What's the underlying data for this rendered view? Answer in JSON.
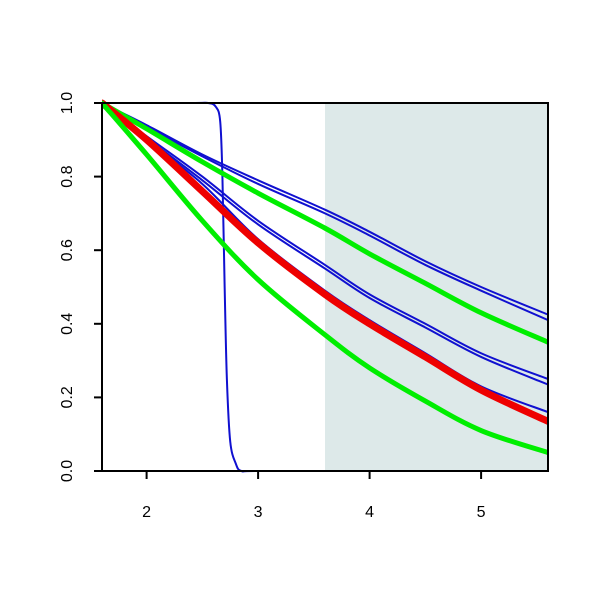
{
  "chart_data": {
    "type": "line",
    "title": "",
    "xlabel": "",
    "ylabel": "",
    "xlim": [
      1.6,
      5.6
    ],
    "ylim": [
      0,
      1
    ],
    "x_ticks": [
      "2",
      "3",
      "4",
      "5"
    ],
    "y_ticks": [
      "0.0",
      "0.2",
      "0.4",
      "0.6",
      "0.8",
      "1.0"
    ],
    "shaded_region": {
      "x_from": 3.6,
      "x_to": 5.6,
      "color": "#dde9e9"
    },
    "colors": {
      "blue": "#1010d0",
      "green": "#00ee00",
      "red": "#ee0000",
      "axis": "#000000"
    },
    "series": [
      {
        "color": "#1010d0",
        "width": 2,
        "x": [
          1.6,
          2.4,
          2.55,
          2.62,
          2.66,
          2.68,
          2.7,
          2.72,
          2.75,
          2.8,
          2.85,
          3.0,
          4.0,
          5.0,
          5.6
        ],
        "y": [
          1.0,
          1.0,
          1.0,
          0.99,
          0.95,
          0.8,
          0.5,
          0.25,
          0.08,
          0.02,
          0.0,
          0.0,
          0.0,
          0.0,
          0.0
        ]
      },
      {
        "color": "#1010d0",
        "width": 2,
        "x": [
          1.6,
          2.0,
          2.5,
          3.0,
          3.6,
          4.0,
          4.5,
          5.0,
          5.6
        ],
        "y": [
          1.0,
          0.94,
          0.86,
          0.79,
          0.71,
          0.65,
          0.57,
          0.5,
          0.425
        ]
      },
      {
        "color": "#1010d0",
        "width": 2,
        "x": [
          1.6,
          2.0,
          2.5,
          3.0,
          3.6,
          4.0,
          4.5,
          5.0,
          5.6
        ],
        "y": [
          1.0,
          0.935,
          0.855,
          0.78,
          0.7,
          0.64,
          0.56,
          0.49,
          0.41
        ]
      },
      {
        "color": "#1010d0",
        "width": 2,
        "x": [
          1.6,
          2.0,
          2.5,
          3.0,
          3.6,
          4.0,
          4.5,
          5.0,
          5.6
        ],
        "y": [
          1.0,
          0.91,
          0.8,
          0.68,
          0.56,
          0.48,
          0.4,
          0.32,
          0.25
        ]
      },
      {
        "color": "#1010d0",
        "width": 2,
        "x": [
          1.6,
          2.0,
          2.5,
          3.0,
          3.6,
          4.0,
          4.5,
          5.0,
          5.6
        ],
        "y": [
          1.0,
          0.905,
          0.79,
          0.67,
          0.55,
          0.47,
          0.39,
          0.31,
          0.235
        ]
      },
      {
        "color": "#1010d0",
        "width": 2,
        "x": [
          1.6,
          2.0,
          2.5,
          3.0,
          3.6,
          4.0,
          4.5,
          5.0,
          5.6
        ],
        "y": [
          1.0,
          0.9,
          0.78,
          0.63,
          0.49,
          0.41,
          0.32,
          0.23,
          0.16
        ]
      },
      {
        "color": "#00ee00",
        "width": 5,
        "x": [
          1.6,
          2.0,
          2.5,
          3.0,
          3.6,
          4.0,
          4.5,
          5.0,
          5.6
        ],
        "y": [
          1.0,
          0.93,
          0.84,
          0.755,
          0.66,
          0.59,
          0.51,
          0.43,
          0.35
        ]
      },
      {
        "color": "#ee0000",
        "width": 7,
        "x": [
          1.6,
          2.0,
          2.5,
          3.0,
          3.6,
          4.0,
          4.5,
          5.0,
          5.6
        ],
        "y": [
          1.0,
          0.9,
          0.76,
          0.62,
          0.48,
          0.4,
          0.31,
          0.22,
          0.135
        ]
      },
      {
        "color": "#00ee00",
        "width": 5,
        "x": [
          1.6,
          2.0,
          2.5,
          3.0,
          3.6,
          4.0,
          4.5,
          5.0,
          5.6
        ],
        "y": [
          1.0,
          0.86,
          0.68,
          0.52,
          0.37,
          0.28,
          0.19,
          0.11,
          0.05
        ]
      }
    ]
  }
}
